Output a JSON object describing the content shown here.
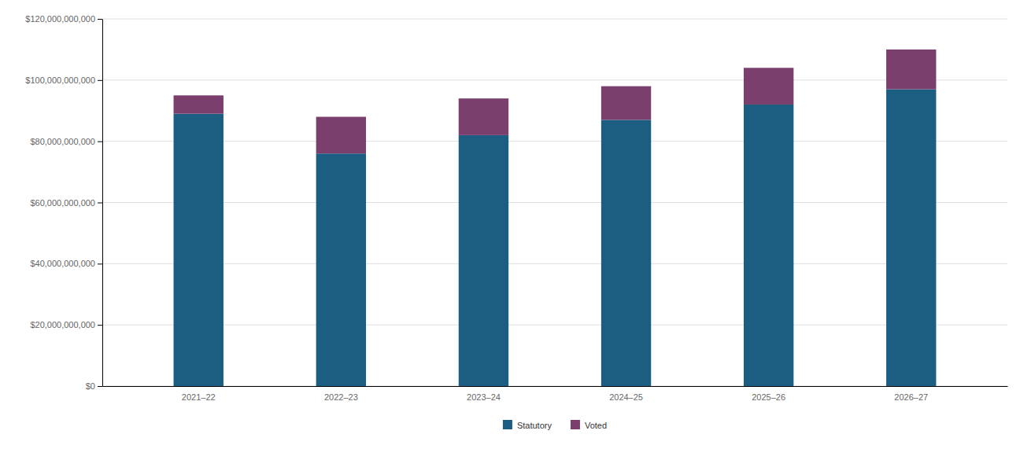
{
  "chart_data": {
    "type": "bar",
    "stacked": true,
    "categories": [
      "2021–22",
      "2022–23",
      "2023–24",
      "2024–25",
      "2025–26",
      "2026–27"
    ],
    "series": [
      {
        "name": "Statutory",
        "color": "#1b5e82",
        "values": [
          89000000000,
          76000000000,
          82000000000,
          87000000000,
          92000000000,
          97000000000
        ]
      },
      {
        "name": "Voted",
        "color": "#7b3f6e",
        "values": [
          6000000000,
          12000000000,
          12000000000,
          11000000000,
          12000000000,
          13000000000
        ]
      }
    ],
    "ylim": [
      0,
      120000000000
    ],
    "yticks": [
      {
        "value": 0,
        "label": "$0"
      },
      {
        "value": 20000000000,
        "label": "$20,000,000,000"
      },
      {
        "value": 40000000000,
        "label": "$40,000,000,000"
      },
      {
        "value": 60000000000,
        "label": "$60,000,000,000"
      },
      {
        "value": 80000000000,
        "label": "$80,000,000,000"
      },
      {
        "value": 100000000000,
        "label": "$100,000,000,000"
      },
      {
        "value": 120000000000,
        "label": "$120,000,000,000"
      }
    ],
    "grid": true,
    "legend": "bottom"
  }
}
